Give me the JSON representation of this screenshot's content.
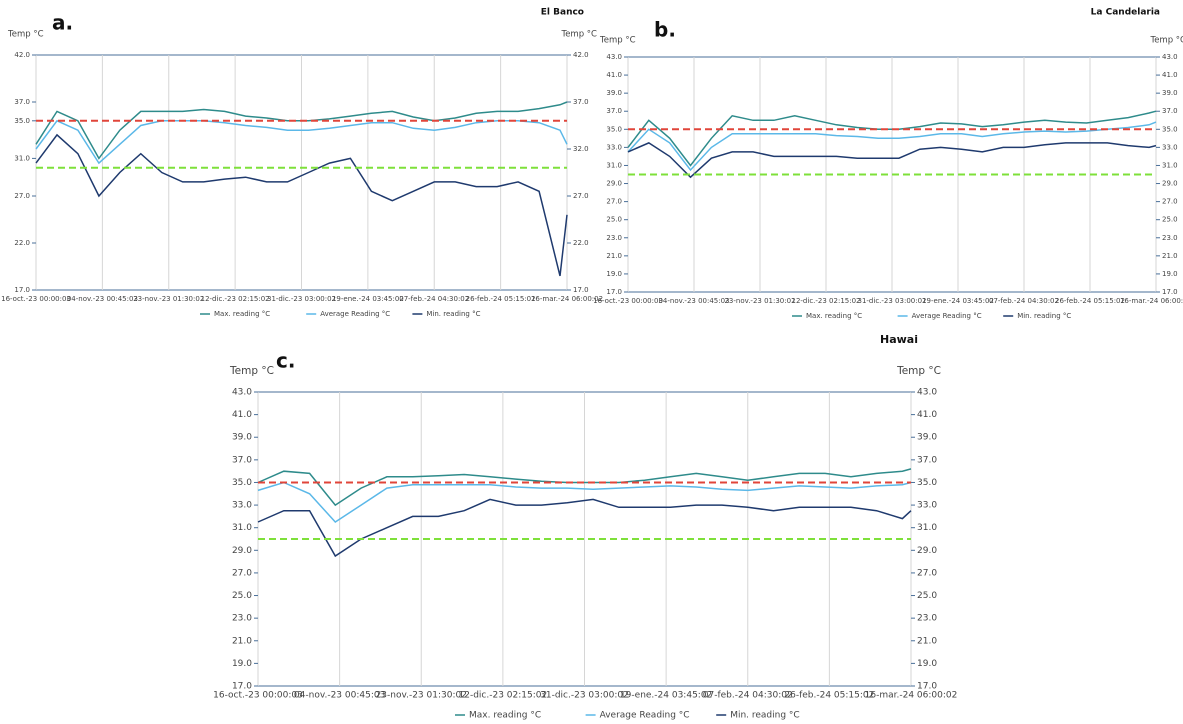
{
  "chart_data": [
    {
      "type": "line",
      "panel_label": "a.",
      "title": "El Banco",
      "y_label": "Temp °C",
      "y2_label": "Temp °C",
      "grid": "x",
      "legend": "bottom",
      "x": [
        0,
        6,
        12,
        18,
        24,
        30,
        36,
        42,
        48,
        54,
        60,
        66,
        72,
        78,
        84,
        90,
        96,
        102,
        108,
        114,
        120,
        126,
        132,
        138,
        144,
        150,
        152
      ],
      "xlim": [
        0,
        152
      ],
      "xticks": [
        {
          "value": 0,
          "label": "16-oct.-23 00:00:03"
        },
        {
          "value": 19,
          "label": "04-nov.-23 00:45:03"
        },
        {
          "value": 38,
          "label": "23-nov.-23 01:30:02"
        },
        {
          "value": 57,
          "label": "12-dic.-23 02:15:02"
        },
        {
          "value": 76,
          "label": "31-dic.-23 03:00:02"
        },
        {
          "value": 95,
          "label": "19-ene.-24 03:45:02"
        },
        {
          "value": 114,
          "label": "07-feb.-24 04:30:02"
        },
        {
          "value": 133,
          "label": "26-feb.-24 05:15:02"
        },
        {
          "value": 152,
          "label": "16-mar.-24 06:00:02"
        }
      ],
      "ylim": [
        17,
        42
      ],
      "yticks": [
        {
          "value": 17,
          "label": "17.0"
        },
        {
          "value": 22,
          "label": "22.0"
        },
        {
          "value": 27,
          "label": "27.0"
        },
        {
          "value": 31,
          "label": "31.0"
        },
        {
          "value": 35,
          "label": "35.0"
        },
        {
          "value": 37,
          "label": "37.0"
        },
        {
          "value": 42,
          "label": "42.0"
        }
      ],
      "y2lim": [
        17,
        42
      ],
      "y2ticks": [
        {
          "value": 17,
          "label": "17.0"
        },
        {
          "value": 22,
          "label": "22.0"
        },
        {
          "value": 27,
          "label": "27.0"
        },
        {
          "value": 32,
          "label": "32.0"
        },
        {
          "value": 37,
          "label": "37.0"
        },
        {
          "value": 42,
          "label": "42.0"
        }
      ],
      "reference_lines": [
        {
          "value": 35,
          "color": "#e0453a"
        },
        {
          "value": 30,
          "color": "#7ee03a"
        }
      ],
      "series": [
        {
          "name": "Max. reading °C",
          "color": "#2e8b8b",
          "values": [
            32.5,
            36,
            35,
            31,
            34,
            36,
            36,
            36,
            36.2,
            36,
            35.5,
            35.3,
            35,
            35,
            35.2,
            35.5,
            35.8,
            36,
            35.4,
            35,
            35.3,
            35.8,
            36,
            36,
            36.3,
            36.7,
            37
          ]
        },
        {
          "name": "Average Reading °C",
          "color": "#5bb8e8",
          "values": [
            32,
            35,
            34,
            30.5,
            32.5,
            34.5,
            35,
            35,
            35,
            34.8,
            34.5,
            34.3,
            34,
            34,
            34.2,
            34.5,
            34.8,
            34.8,
            34.2,
            34,
            34.3,
            34.8,
            35,
            35,
            34.8,
            34,
            32.5
          ]
        },
        {
          "name": "Min. reading °C",
          "color": "#1f3a6e",
          "values": [
            30.5,
            33.5,
            31.5,
            27,
            29.5,
            31.5,
            29.5,
            28.5,
            28.5,
            28.8,
            29,
            28.5,
            28.5,
            29.5,
            30.5,
            31,
            27.5,
            26.5,
            27.5,
            28.5,
            28.5,
            28,
            28,
            28.5,
            27.5,
            18.5,
            25
          ]
        }
      ]
    },
    {
      "type": "line",
      "panel_label": "b.",
      "title": "La Candelaria",
      "y_label": "Temp °C",
      "y2_label": "Temp °C",
      "grid": "x",
      "legend": "bottom",
      "x": [
        0,
        6,
        12,
        18,
        24,
        30,
        36,
        42,
        48,
        54,
        60,
        66,
        72,
        78,
        84,
        90,
        96,
        102,
        108,
        114,
        120,
        126,
        132,
        138,
        144,
        150,
        152
      ],
      "xlim": [
        0,
        152
      ],
      "xticks": [
        {
          "value": 0,
          "label": "16-oct.-23 00:00:03"
        },
        {
          "value": 19,
          "label": "04-nov.-23 00:45:03"
        },
        {
          "value": 38,
          "label": "23-nov.-23 01:30:02"
        },
        {
          "value": 57,
          "label": "12-dic.-23 02:15:02"
        },
        {
          "value": 76,
          "label": "31-dic.-23 03:00:02"
        },
        {
          "value": 95,
          "label": "19-ene.-24 03:45:02"
        },
        {
          "value": 114,
          "label": "07-feb.-24 04:30:02"
        },
        {
          "value": 133,
          "label": "26-feb.-24 05:15:02"
        },
        {
          "value": 152,
          "label": "16-mar.-24 06:00:02"
        }
      ],
      "ylim": [
        17,
        43
      ],
      "yticks": [
        {
          "value": 17,
          "label": "17.0"
        },
        {
          "value": 19,
          "label": "19.0"
        },
        {
          "value": 21,
          "label": "21.0"
        },
        {
          "value": 23,
          "label": "23.0"
        },
        {
          "value": 25,
          "label": "25.0"
        },
        {
          "value": 27,
          "label": "27.0"
        },
        {
          "value": 29,
          "label": "29.0"
        },
        {
          "value": 31,
          "label": "31.0"
        },
        {
          "value": 33,
          "label": "33.0"
        },
        {
          "value": 35,
          "label": "35.0"
        },
        {
          "value": 37,
          "label": "37.0"
        },
        {
          "value": 39,
          "label": "39.0"
        },
        {
          "value": 41,
          "label": "41.0"
        },
        {
          "value": 43,
          "label": "43.0"
        }
      ],
      "y2lim": [
        17,
        43
      ],
      "y2ticks": [
        {
          "value": 17,
          "label": "17.0"
        },
        {
          "value": 19,
          "label": "19.0"
        },
        {
          "value": 21,
          "label": "21.0"
        },
        {
          "value": 23,
          "label": "23.0"
        },
        {
          "value": 25,
          "label": "25.0"
        },
        {
          "value": 27,
          "label": "27.0"
        },
        {
          "value": 29,
          "label": "29.0"
        },
        {
          "value": 31,
          "label": "31.0"
        },
        {
          "value": 33,
          "label": "33.0"
        },
        {
          "value": 35,
          "label": "35.0"
        },
        {
          "value": 37,
          "label": "37.0"
        },
        {
          "value": 39,
          "label": "39.0"
        },
        {
          "value": 41,
          "label": "41.0"
        },
        {
          "value": 43,
          "label": "43.0"
        }
      ],
      "reference_lines": [
        {
          "value": 35,
          "color": "#e0453a"
        },
        {
          "value": 30,
          "color": "#7ee03a"
        }
      ],
      "series": [
        {
          "name": "Max. reading °C",
          "color": "#2e8b8b",
          "values": [
            33,
            36,
            34,
            31,
            34,
            36.5,
            36,
            36,
            36.5,
            36,
            35.5,
            35.2,
            35,
            35,
            35.3,
            35.7,
            35.6,
            35.3,
            35.5,
            35.8,
            36,
            35.8,
            35.7,
            36,
            36.3,
            36.8,
            37
          ]
        },
        {
          "name": "Average Reading °C",
          "color": "#5bb8e8",
          "values": [
            32.5,
            35,
            33.5,
            30.5,
            33,
            34.5,
            34.5,
            34.5,
            34.5,
            34.5,
            34.3,
            34.2,
            34,
            34,
            34.2,
            34.5,
            34.5,
            34.2,
            34.5,
            34.7,
            34.8,
            34.7,
            34.8,
            35,
            35.2,
            35.5,
            35.8
          ]
        },
        {
          "name": "Min. reading °C",
          "color": "#1f3a6e",
          "values": [
            32.5,
            33.5,
            32,
            29.7,
            31.8,
            32.5,
            32.5,
            32,
            32,
            32,
            32,
            31.8,
            31.8,
            31.8,
            32.8,
            33,
            32.8,
            32.5,
            33,
            33,
            33.3,
            33.5,
            33.5,
            33.5,
            33.2,
            33,
            33.2
          ]
        }
      ]
    },
    {
      "type": "line",
      "panel_label": "c.",
      "title": "Hawai",
      "y_label": "Temp °C",
      "y2_label": "Temp °C",
      "grid": "x",
      "legend": "bottom",
      "x": [
        0,
        6,
        12,
        18,
        24,
        30,
        36,
        42,
        48,
        54,
        60,
        66,
        72,
        78,
        84,
        90,
        96,
        102,
        108,
        114,
        120,
        126,
        132,
        138,
        144,
        150,
        152
      ],
      "xlim": [
        0,
        152
      ],
      "xticks": [
        {
          "value": 0,
          "label": "16-oct.-23 00:00:03"
        },
        {
          "value": 19,
          "label": "04-nov.-23 00:45:03"
        },
        {
          "value": 38,
          "label": "23-nov.-23 01:30:02"
        },
        {
          "value": 57,
          "label": "12-dic.-23 02:15:02"
        },
        {
          "value": 76,
          "label": "31-dic.-23 03:00:02"
        },
        {
          "value": 95,
          "label": "19-ene.-24 03:45:02"
        },
        {
          "value": 114,
          "label": "07-feb.-24 04:30:02"
        },
        {
          "value": 133,
          "label": "26-feb.-24 05:15:02"
        },
        {
          "value": 152,
          "label": "16-mar.-24 06:00:02"
        }
      ],
      "ylim": [
        17,
        43
      ],
      "yticks": [
        {
          "value": 17,
          "label": "17.0"
        },
        {
          "value": 19,
          "label": "19.0"
        },
        {
          "value": 21,
          "label": "21.0"
        },
        {
          "value": 23,
          "label": "23.0"
        },
        {
          "value": 25,
          "label": "25.0"
        },
        {
          "value": 27,
          "label": "27.0"
        },
        {
          "value": 29,
          "label": "29.0"
        },
        {
          "value": 31,
          "label": "31.0"
        },
        {
          "value": 33,
          "label": "33.0"
        },
        {
          "value": 35,
          "label": "35.0"
        },
        {
          "value": 37,
          "label": "37.0"
        },
        {
          "value": 39,
          "label": "39.0"
        },
        {
          "value": 41,
          "label": "41.0"
        },
        {
          "value": 43,
          "label": "43.0"
        }
      ],
      "y2lim": [
        17,
        43
      ],
      "y2ticks": [
        {
          "value": 17,
          "label": "17.0"
        },
        {
          "value": 19,
          "label": "19.0"
        },
        {
          "value": 21,
          "label": "21.0"
        },
        {
          "value": 23,
          "label": "23.0"
        },
        {
          "value": 25,
          "label": "25.0"
        },
        {
          "value": 27,
          "label": "27.0"
        },
        {
          "value": 29,
          "label": "29.0"
        },
        {
          "value": 31,
          "label": "31.0"
        },
        {
          "value": 33,
          "label": "33.0"
        },
        {
          "value": 35,
          "label": "35.0"
        },
        {
          "value": 37,
          "label": "37.0"
        },
        {
          "value": 39,
          "label": "39.0"
        },
        {
          "value": 41,
          "label": "41.0"
        },
        {
          "value": 43,
          "label": "43.0"
        }
      ],
      "reference_lines": [
        {
          "value": 35,
          "color": "#e0453a"
        },
        {
          "value": 30,
          "color": "#7ee03a"
        }
      ],
      "series": [
        {
          "name": "Max. reading °C",
          "color": "#2e8b8b",
          "values": [
            35,
            36,
            35.8,
            33,
            34.5,
            35.5,
            35.5,
            35.6,
            35.7,
            35.5,
            35.3,
            35.1,
            35,
            35,
            35,
            35.2,
            35.5,
            35.8,
            35.5,
            35.2,
            35.5,
            35.8,
            35.8,
            35.5,
            35.8,
            36,
            36.2
          ]
        },
        {
          "name": "Average Reading °C",
          "color": "#5bb8e8",
          "values": [
            34.3,
            35,
            34,
            31.5,
            33,
            34.5,
            34.8,
            34.8,
            34.8,
            34.8,
            34.6,
            34.5,
            34.5,
            34.4,
            34.5,
            34.6,
            34.7,
            34.6,
            34.4,
            34.3,
            34.5,
            34.7,
            34.6,
            34.5,
            34.7,
            34.8,
            35
          ]
        },
        {
          "name": "Min. reading °C",
          "color": "#1f3a6e",
          "values": [
            31.5,
            32.5,
            32.5,
            28.5,
            30,
            31,
            32,
            32,
            32.5,
            33.5,
            33,
            33,
            33.2,
            33.5,
            32.8,
            32.8,
            32.8,
            33,
            33,
            32.8,
            32.5,
            32.8,
            32.8,
            32.8,
            32.5,
            31.8,
            32.5
          ]
        }
      ]
    }
  ]
}
